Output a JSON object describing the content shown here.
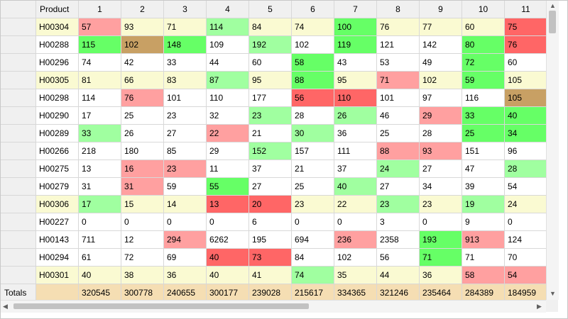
{
  "header": {
    "product_label": "Product",
    "columns": [
      "1",
      "2",
      "3",
      "4",
      "5",
      "6",
      "7",
      "8",
      "9",
      "10",
      "11"
    ]
  },
  "rows": [
    {
      "product": "H00304",
      "values": [
        "57",
        "93",
        "71",
        "114",
        "84",
        "74",
        "100",
        "76",
        "77",
        "60",
        "75"
      ],
      "colors": [
        "#ffa0a0",
        "#fafad2",
        "#fafad2",
        "#a0ffa0",
        "#fafad2",
        "#fafad2",
        "#66ff66",
        "#fafad2",
        "#fafad2",
        "#fafad2",
        "#ff6666"
      ]
    },
    {
      "product": "H00288",
      "values": [
        "115",
        "102",
        "148",
        "109",
        "192",
        "102",
        "119",
        "121",
        "142",
        "80",
        "76"
      ],
      "colors": [
        "#66ff66",
        "#c8a064",
        "#66ff66",
        "#ffffff",
        "#a0ffa0",
        "#ffffff",
        "#66ff66",
        "#ffffff",
        "#ffffff",
        "#66ff66",
        "#ff6666"
      ]
    },
    {
      "product": "H00296",
      "values": [
        "74",
        "42",
        "33",
        "44",
        "60",
        "58",
        "43",
        "53",
        "49",
        "72",
        "60"
      ],
      "colors": [
        "#ffffff",
        "#ffffff",
        "#ffffff",
        "#ffffff",
        "#ffffff",
        "#66ff66",
        "#ffffff",
        "#ffffff",
        "#ffffff",
        "#66ff66",
        "#ffffff"
      ]
    },
    {
      "product": "H00305",
      "values": [
        "81",
        "66",
        "83",
        "87",
        "95",
        "88",
        "95",
        "71",
        "102",
        "59",
        "105"
      ],
      "colors": [
        "#fafad2",
        "#fafad2",
        "#fafad2",
        "#a0ffa0",
        "#fafad2",
        "#66ff66",
        "#fafad2",
        "#ffa0a0",
        "#fafad2",
        "#66ff66",
        "#fafad2"
      ]
    },
    {
      "product": "H00298",
      "values": [
        "114",
        "76",
        "101",
        "110",
        "177",
        "56",
        "110",
        "101",
        "97",
        "116",
        "105"
      ],
      "colors": [
        "#ffffff",
        "#ffa0a0",
        "#ffffff",
        "#ffffff",
        "#ffffff",
        "#ff6666",
        "#ff6666",
        "#ffffff",
        "#ffffff",
        "#ffffff",
        "#c8a064"
      ]
    },
    {
      "product": "H00290",
      "values": [
        "17",
        "25",
        "23",
        "32",
        "23",
        "28",
        "26",
        "46",
        "29",
        "33",
        "40"
      ],
      "colors": [
        "#ffffff",
        "#ffffff",
        "#ffffff",
        "#ffffff",
        "#a0ffa0",
        "#ffffff",
        "#a0ffa0",
        "#ffffff",
        "#ffa0a0",
        "#66ff66",
        "#66ff66"
      ]
    },
    {
      "product": "H00289",
      "values": [
        "33",
        "26",
        "27",
        "22",
        "21",
        "30",
        "36",
        "25",
        "28",
        "25",
        "34"
      ],
      "colors": [
        "#a0ffa0",
        "#ffffff",
        "#ffffff",
        "#ffa0a0",
        "#ffffff",
        "#a0ffa0",
        "#ffffff",
        "#ffffff",
        "#ffffff",
        "#66ff66",
        "#66ff66"
      ]
    },
    {
      "product": "H00266",
      "values": [
        "218",
        "180",
        "85",
        "29",
        "152",
        "157",
        "111",
        "88",
        "93",
        "151",
        "96"
      ],
      "colors": [
        "#ffffff",
        "#ffffff",
        "#ffffff",
        "#ffffff",
        "#a0ffa0",
        "#ffffff",
        "#ffffff",
        "#ffa0a0",
        "#ffa0a0",
        "#ffffff",
        "#ffffff"
      ]
    },
    {
      "product": "H00275",
      "values": [
        "13",
        "16",
        "23",
        "11",
        "37",
        "21",
        "37",
        "24",
        "27",
        "47",
        "28"
      ],
      "colors": [
        "#ffffff",
        "#ffa0a0",
        "#ffa0a0",
        "#ffffff",
        "#ffffff",
        "#ffffff",
        "#ffffff",
        "#a0ffa0",
        "#ffffff",
        "#ffffff",
        "#a0ffa0"
      ]
    },
    {
      "product": "H00279",
      "values": [
        "31",
        "31",
        "59",
        "55",
        "27",
        "25",
        "40",
        "27",
        "34",
        "39",
        "54"
      ],
      "colors": [
        "#ffffff",
        "#ffa0a0",
        "#ffffff",
        "#66ff66",
        "#ffffff",
        "#ffffff",
        "#a0ffa0",
        "#ffffff",
        "#ffffff",
        "#ffffff",
        "#ffffff"
      ]
    },
    {
      "product": "H00306",
      "values": [
        "17",
        "15",
        "14",
        "13",
        "20",
        "23",
        "22",
        "23",
        "23",
        "19",
        "24"
      ],
      "colors": [
        "#a0ffa0",
        "#fafad2",
        "#fafad2",
        "#ff6666",
        "#ff6666",
        "#fafad2",
        "#fafad2",
        "#a0ffa0",
        "#fafad2",
        "#a0ffa0",
        "#fafad2"
      ]
    },
    {
      "product": "H00227",
      "values": [
        "0",
        "0",
        "0",
        "0",
        "6",
        "0",
        "0",
        "3",
        "0",
        "9",
        "0"
      ],
      "colors": [
        "#ffffff",
        "#ffffff",
        "#ffffff",
        "#ffffff",
        "#ffffff",
        "#ffffff",
        "#ffffff",
        "#ffffff",
        "#ffffff",
        "#ffffff",
        "#ffffff"
      ]
    },
    {
      "product": "H00143",
      "values": [
        "711",
        "12",
        "294",
        "6262",
        "195",
        "694",
        "236",
        "2358",
        "193",
        "913",
        "124"
      ],
      "colors": [
        "#ffffff",
        "#ffffff",
        "#ffa0a0",
        "#ffffff",
        "#ffffff",
        "#ffffff",
        "#ffa0a0",
        "#ffffff",
        "#66ff66",
        "#ffa0a0",
        "#ffffff"
      ]
    },
    {
      "product": "H00294",
      "values": [
        "61",
        "72",
        "69",
        "40",
        "73",
        "84",
        "102",
        "56",
        "71",
        "71",
        "70"
      ],
      "colors": [
        "#ffffff",
        "#ffffff",
        "#ffffff",
        "#ff6666",
        "#ff6666",
        "#ffffff",
        "#ffffff",
        "#ffffff",
        "#66ff66",
        "#ffffff",
        "#ffffff"
      ]
    },
    {
      "product": "H00301",
      "values": [
        "40",
        "38",
        "36",
        "40",
        "41",
        "74",
        "35",
        "44",
        "36",
        "58",
        "54"
      ],
      "colors": [
        "#fafad2",
        "#fafad2",
        "#fafad2",
        "#fafad2",
        "#fafad2",
        "#a0ffa0",
        "#fafad2",
        "#fafad2",
        "#fafad2",
        "#ffa0a0",
        "#ffa0a0"
      ]
    }
  ],
  "row_bg": [
    "#fafad2",
    "#ffffff",
    "#ffffff",
    "#fafad2",
    "#ffffff",
    "#ffffff",
    "#ffffff",
    "#ffffff",
    "#ffffff",
    "#ffffff",
    "#fafad2",
    "#ffffff",
    "#ffffff",
    "#ffffff",
    "#fafad2"
  ],
  "totals": {
    "label": "Totals",
    "values": [
      "320545",
      "300778",
      "240655",
      "300177",
      "239028",
      "215617",
      "334365",
      "321246",
      "235464",
      "284389",
      "184959"
    ]
  },
  "scrollbars": {
    "up_arrow_icon": "▲",
    "down_arrow_icon": "▼",
    "left_arrow_icon": "◀",
    "right_arrow_icon": "▶"
  }
}
